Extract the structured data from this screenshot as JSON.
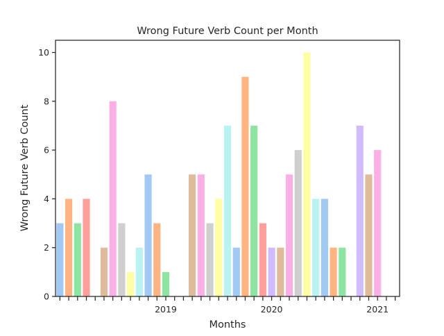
{
  "chart_data": {
    "type": "bar",
    "title": "Wrong Future Verb Count per Month",
    "xlabel": "Months",
    "ylabel": "Wrong Future Verb Count",
    "ylim": [
      0,
      10.5
    ],
    "yticks": [
      0,
      2,
      4,
      6,
      8,
      10
    ],
    "grid": false,
    "legend": "none",
    "x_tick_labels": [
      {
        "label": "2019",
        "month": "2019-01"
      },
      {
        "label": "2020",
        "month": "2020-01"
      },
      {
        "label": "2021",
        "month": "2021-01"
      }
    ],
    "palette": [
      "#a1c9f4",
      "#ffb482",
      "#8de5a1",
      "#ff9f9b",
      "#d0bbff",
      "#debb9b",
      "#fab0e4",
      "#cfcfcf",
      "#fffea3",
      "#b9f2f0"
    ],
    "categories": [
      "2018-01",
      "2018-02",
      "2018-03",
      "2018-04",
      "2018-05",
      "2018-06",
      "2018-07",
      "2018-08",
      "2018-09",
      "2018-10",
      "2018-11",
      "2018-12",
      "2019-01",
      "2019-02",
      "2019-03",
      "2019-04",
      "2019-05",
      "2019-06",
      "2019-07",
      "2019-08",
      "2019-09",
      "2019-10",
      "2019-11",
      "2019-12",
      "2020-01",
      "2020-02",
      "2020-03",
      "2020-04",
      "2020-05",
      "2020-06",
      "2020-07",
      "2020-08",
      "2020-09",
      "2020-10",
      "2020-11",
      "2020-12",
      "2021-01",
      "2021-02",
      "2021-03"
    ],
    "values": [
      3,
      4,
      3,
      4,
      0,
      2,
      8,
      3,
      1,
      2,
      5,
      3,
      1,
      0,
      0,
      5,
      5,
      3,
      4,
      7,
      2,
      9,
      7,
      3,
      2,
      2,
      5,
      6,
      10,
      4,
      4,
      2,
      2,
      0,
      7,
      5,
      6,
      0,
      0
    ],
    "colors": [
      "#a1c9f4",
      "#ffb482",
      "#8de5a1",
      "#ff9f9b",
      "#d0bbff",
      "#debb9b",
      "#fab0e4",
      "#cfcfcf",
      "#fffea3",
      "#b9f2f0",
      "#a1c9f4",
      "#ffb482",
      "#8de5a1",
      "#ff9f9b",
      "#d0bbff",
      "#debb9b",
      "#fab0e4",
      "#cfcfcf",
      "#fffea3",
      "#b9f2f0",
      "#a1c9f4",
      "#ffb482",
      "#8de5a1",
      "#ff9f9b",
      "#d0bbff",
      "#debb9b",
      "#fab0e4",
      "#cfcfcf",
      "#fffea3",
      "#b9f2f0",
      "#a1c9f4",
      "#ffb482",
      "#8de5a1",
      "#ff9f9b",
      "#d0bbff",
      "#debb9b",
      "#fab0e4",
      "#cfcfcf",
      "#fffea3"
    ]
  }
}
